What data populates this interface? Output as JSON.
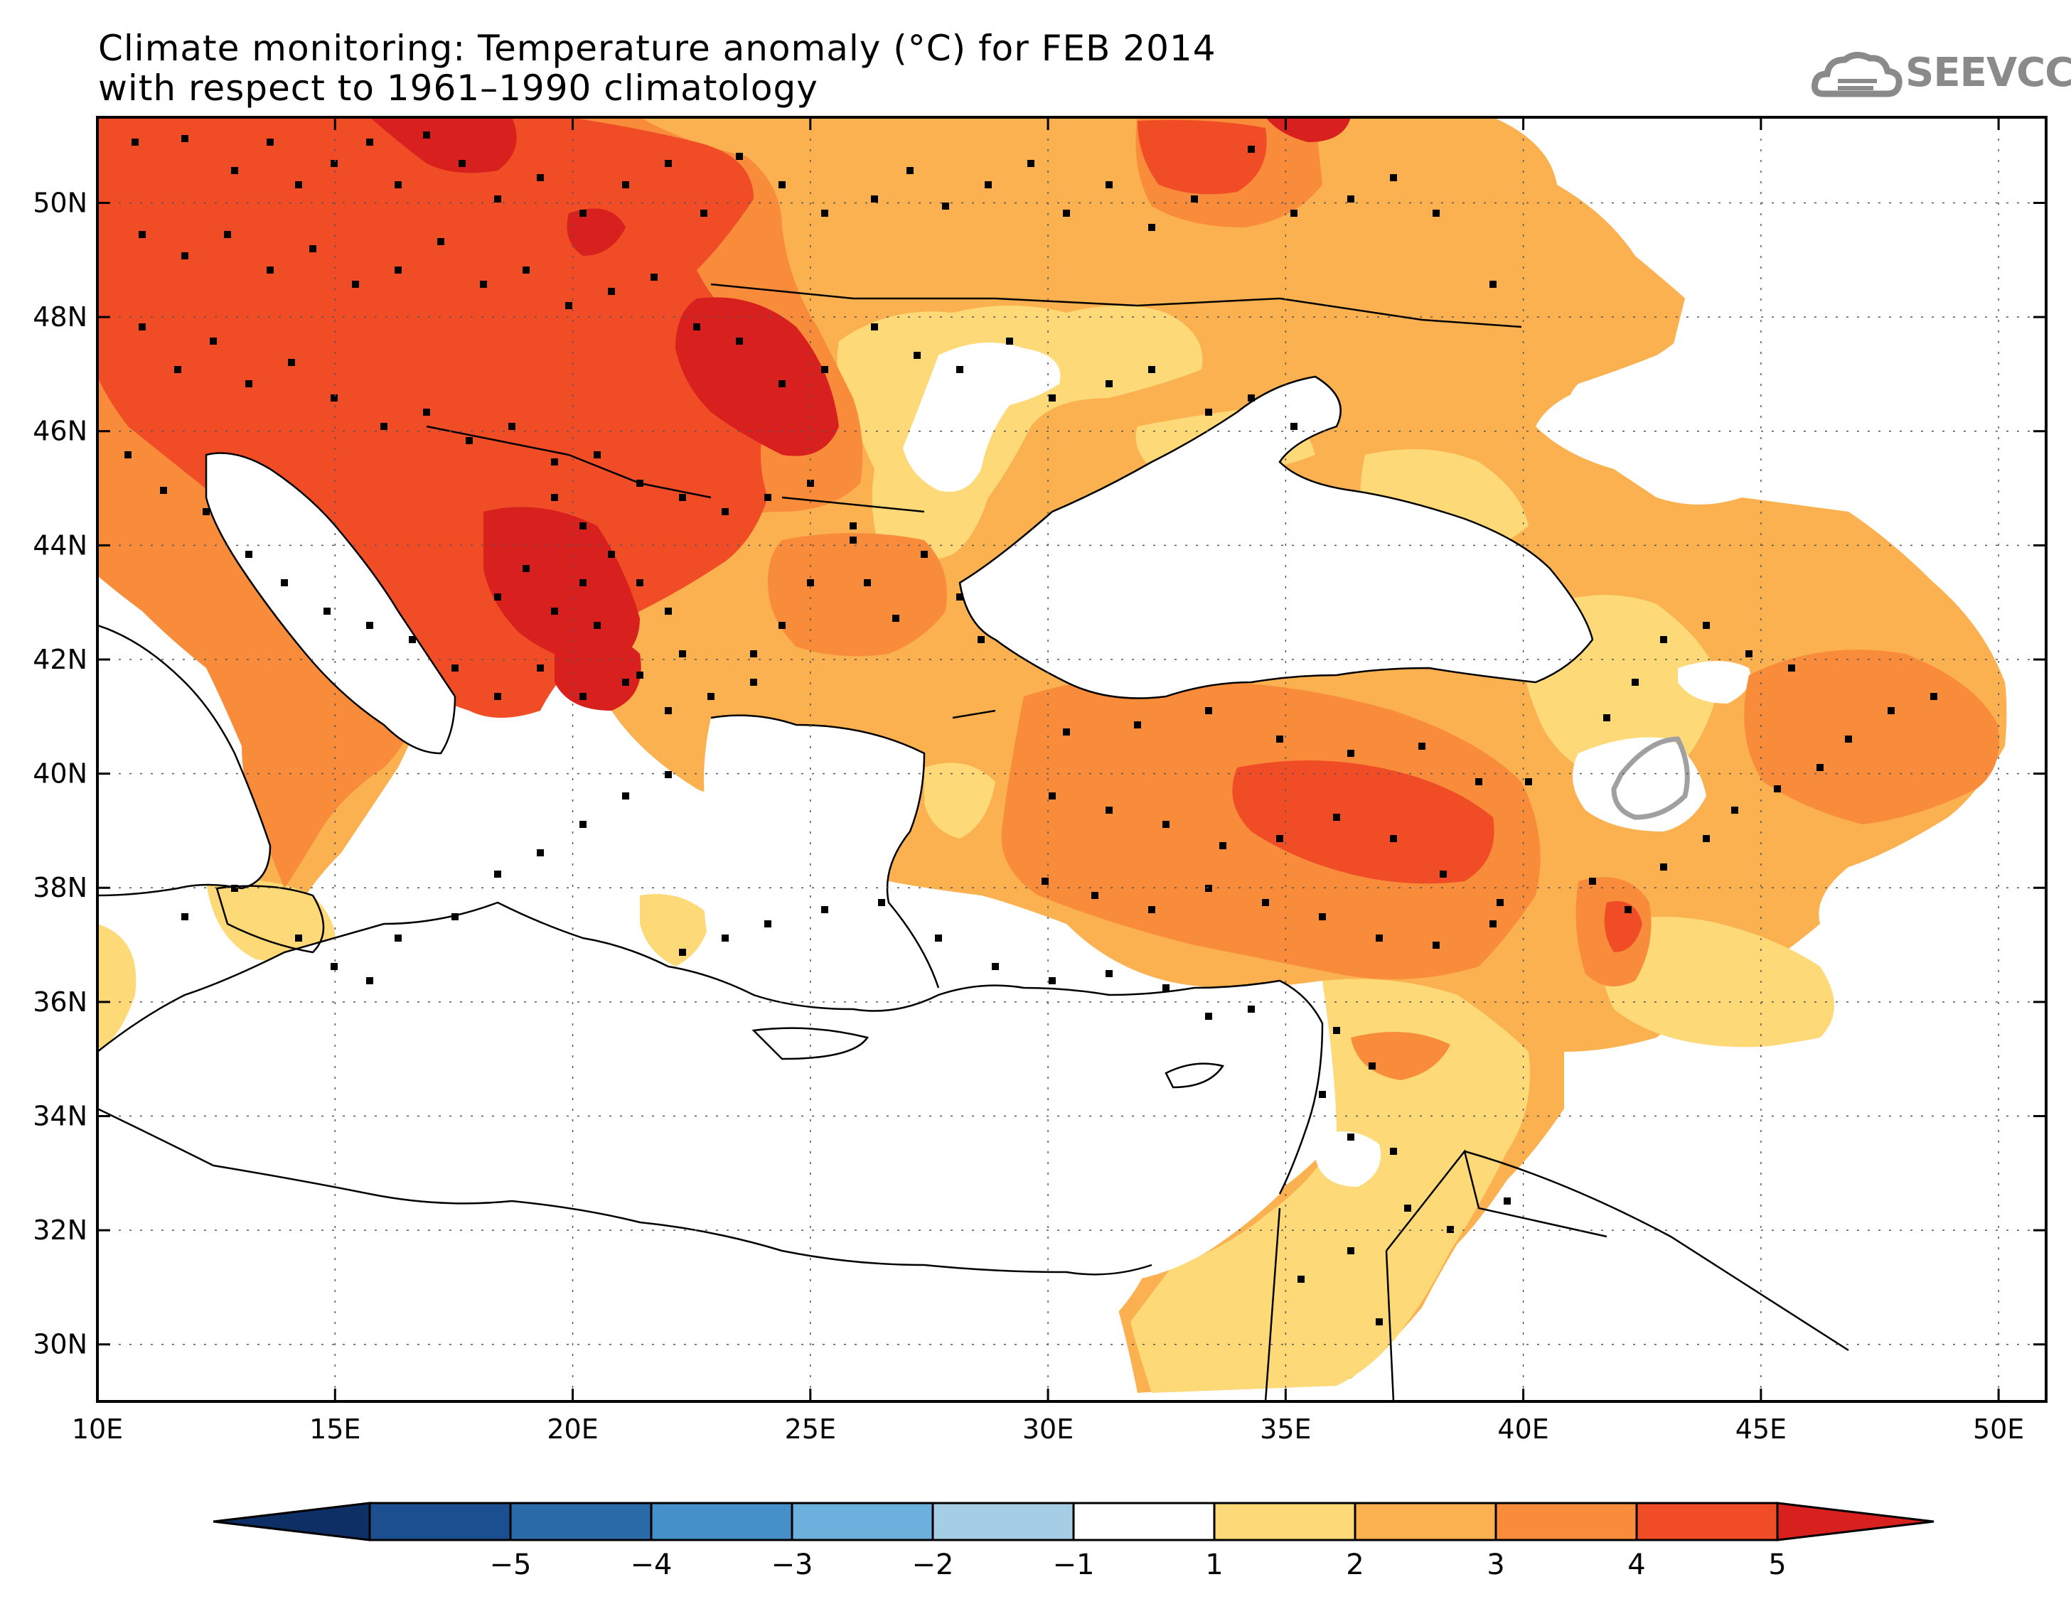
{
  "title": {
    "line1": "Climate monitoring: Temperature anomaly (°C) for FEB 2014",
    "line2": "with respect to 1961–1990 climatology"
  },
  "logo": {
    "text": "SEEVCCC",
    "icon": "cloud-icon",
    "color": "#8a8a8a"
  },
  "map": {
    "lon_range": [
      10,
      51
    ],
    "lat_range": [
      29,
      51.5
    ],
    "lon_ticks": [
      {
        "value": 10,
        "label": "10E"
      },
      {
        "value": 15,
        "label": "15E"
      },
      {
        "value": 20,
        "label": "20E"
      },
      {
        "value": 25,
        "label": "25E"
      },
      {
        "value": 30,
        "label": "30E"
      },
      {
        "value": 35,
        "label": "35E"
      },
      {
        "value": 40,
        "label": "40E"
      },
      {
        "value": 45,
        "label": "45E"
      },
      {
        "value": 50,
        "label": "50E"
      }
    ],
    "lat_ticks": [
      {
        "value": 50,
        "label": "50N"
      },
      {
        "value": 48,
        "label": "48N"
      },
      {
        "value": 46,
        "label": "46N"
      },
      {
        "value": 44,
        "label": "44N"
      },
      {
        "value": 42,
        "label": "42N"
      },
      {
        "value": 40,
        "label": "40N"
      },
      {
        "value": 38,
        "label": "38N"
      },
      {
        "value": 36,
        "label": "36N"
      },
      {
        "value": 34,
        "label": "34N"
      },
      {
        "value": 32,
        "label": "32N"
      },
      {
        "value": 30,
        "label": "30N"
      }
    ]
  },
  "colorbar": {
    "levels": [
      {
        "color": "#1b4f8f",
        "label": "-5"
      },
      {
        "color": "#2b6aa9",
        "label": "-4"
      },
      {
        "color": "#4590c8",
        "label": "-3"
      },
      {
        "color": "#6cb0dd",
        "label": "-2"
      },
      {
        "color": "#a6cde6",
        "label": "-1"
      },
      {
        "color": "#ffffff",
        "label": "1"
      },
      {
        "color": "#fdd978",
        "label": "2"
      },
      {
        "color": "#fbb14f",
        "label": "3"
      },
      {
        "color": "#f88c3b",
        "label": "4"
      },
      {
        "color": "#f04d27",
        "label": "5"
      }
    ],
    "low_extend_color": "#0d2f66",
    "high_extend_color": "#d8201f"
  },
  "colors": {
    "anom_1_2": "#fdd978",
    "anom_2_3": "#fbb14f",
    "anom_3_4": "#f88c3b",
    "anom_4_5": "#f04d27",
    "anom_gt5": "#d8201f"
  }
}
